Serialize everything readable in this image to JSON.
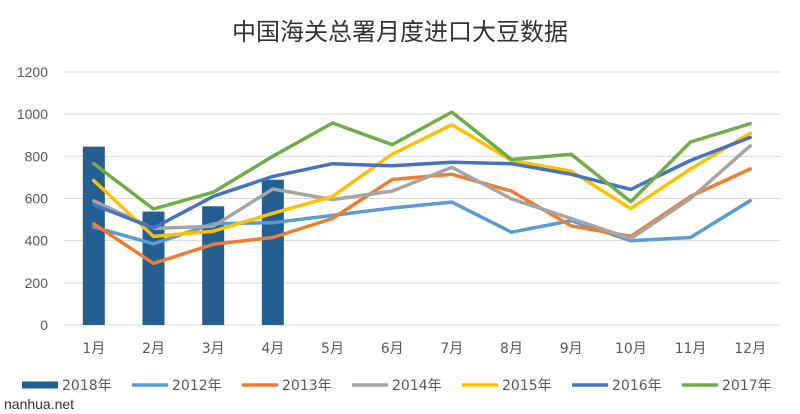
{
  "chart_data": {
    "type": "bar+line",
    "title": "中国海关总署月度进口大豆数据",
    "categories": [
      "1月",
      "2月",
      "3月",
      "4月",
      "5月",
      "6月",
      "7月",
      "8月",
      "9月",
      "10月",
      "11月",
      "12月"
    ],
    "ylim": [
      0,
      1200
    ],
    "yticks": [
      0,
      200,
      400,
      600,
      800,
      1000,
      1200
    ],
    "grid": true,
    "legend_position": "bottom",
    "bars": {
      "name": "2018年",
      "color": "#255e91",
      "values": [
        846,
        538,
        563,
        689
      ]
    },
    "series": [
      {
        "name": "2012年",
        "color": "#5b9bd5",
        "values": [
          465,
          385,
          480,
          485,
          520,
          555,
          583,
          440,
          495,
          400,
          415,
          590
        ]
      },
      {
        "name": "2013年",
        "color": "#ed7d31",
        "values": [
          480,
          292,
          383,
          415,
          505,
          690,
          715,
          635,
          470,
          420,
          610,
          740
        ]
      },
      {
        "name": "2014年",
        "color": "#a5a5a5",
        "values": [
          588,
          458,
          468,
          645,
          595,
          635,
          748,
          598,
          505,
          410,
          600,
          850
        ]
      },
      {
        "name": "2015年",
        "color": "#ffc000",
        "values": [
          685,
          420,
          445,
          530,
          610,
          810,
          950,
          780,
          730,
          552,
          740,
          910
        ]
      },
      {
        "name": "2016年",
        "color": "#4472c4",
        "values": [
          570,
          460,
          610,
          705,
          765,
          755,
          772,
          765,
          715,
          643,
          780,
          890
        ]
      },
      {
        "name": "2017年",
        "color": "#70ad47",
        "values": [
          765,
          550,
          630,
          800,
          958,
          855,
          1010,
          785,
          810,
          585,
          868,
          955
        ]
      }
    ]
  },
  "watermark": "nanhua.net"
}
